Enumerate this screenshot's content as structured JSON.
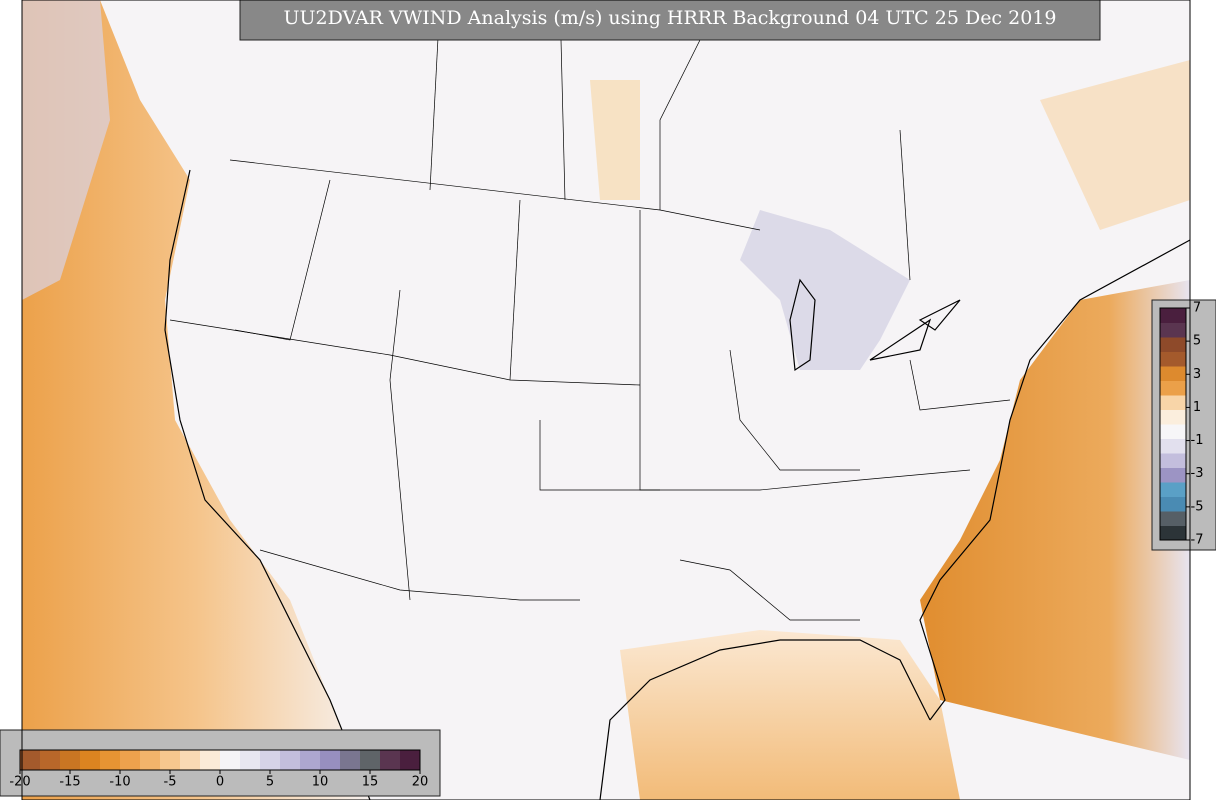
{
  "title": "UU2DVAR VWIND Analysis (m/s) using HRRR Background 04 UTC 25 Dec 2019",
  "colorbar_bottom": {
    "range": [
      -20,
      20
    ],
    "ticks": [
      -20,
      -15,
      -10,
      -5,
      0,
      5,
      10,
      15,
      20
    ],
    "colors": [
      "#a45a2c",
      "#b8672a",
      "#c97623",
      "#db8420",
      "#e69433",
      "#eda24d",
      "#f2b46b",
      "#f6c78e",
      "#f9dab4",
      "#fbebd8",
      "#f5f4f7",
      "#e8e6f1",
      "#d6d3e8",
      "#c3bedd",
      "#ada7d0",
      "#978fbf",
      "#7a7690",
      "#5f6468",
      "#5a3550",
      "#4a1f3e"
    ]
  },
  "colorbar_right": {
    "range": [
      -7,
      7
    ],
    "ticks": [
      7,
      5,
      3,
      1,
      -1,
      -3,
      -5,
      -7
    ],
    "colors": [
      "#2c3438",
      "#565f66",
      "#4a8bb3",
      "#5aa0c6",
      "#9c94c4",
      "#c3bedd",
      "#e2e0ee",
      "#f7f6f8",
      "#fbeedd",
      "#f8d5a8",
      "#eba049",
      "#dd8a2e",
      "#a45a2c",
      "#8e4a2a",
      "#5a3550",
      "#4a1f3e"
    ]
  }
}
